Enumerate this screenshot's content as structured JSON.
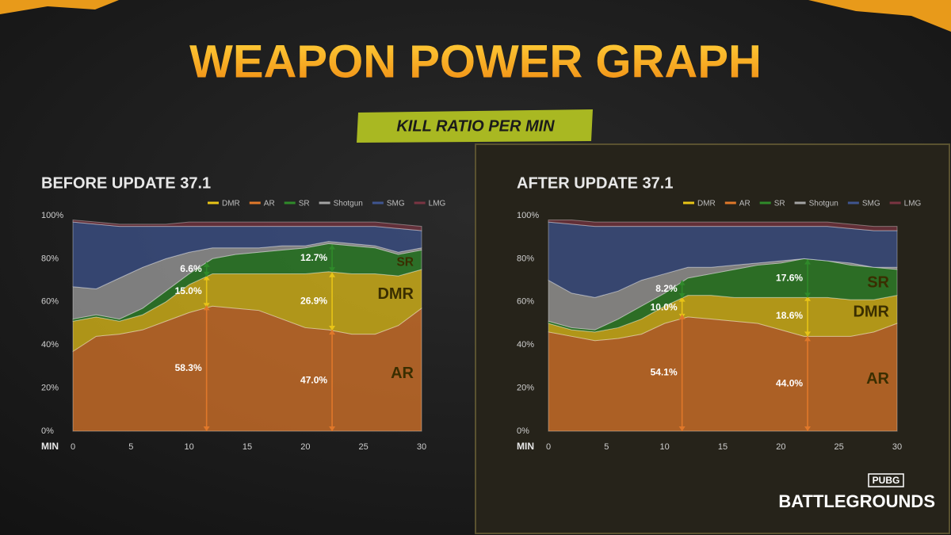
{
  "header": {
    "title": "WEAPON POWER GRAPH",
    "subtitle": "KILL RATIO PER MIN"
  },
  "logo": {
    "badge": "PUBG",
    "name": "BATTLEGROUNDS"
  },
  "chart_data": [
    {
      "type": "area",
      "stacked": true,
      "title": "BEFORE UPDATE 37.1",
      "xlabel": "MIN",
      "x": [
        0,
        2,
        4,
        6,
        8,
        10,
        12,
        14,
        16,
        18,
        20,
        22,
        24,
        26,
        28,
        30
      ],
      "xlim": [
        0,
        30
      ],
      "xticks": [
        0,
        5,
        10,
        15,
        20,
        25,
        30
      ],
      "ylim": [
        0,
        100
      ],
      "yticks": [
        {
          "value": 0,
          "label": "0%"
        },
        {
          "value": 20,
          "label": "20%"
        },
        {
          "value": 40,
          "label": "40%"
        },
        {
          "value": 60,
          "label": "60%"
        },
        {
          "value": 80,
          "label": "80%"
        },
        {
          "value": 100,
          "label": "100%"
        }
      ],
      "series": [
        {
          "name": "DMR",
          "color": "#e8c417",
          "label_inline": true,
          "values": [
            14,
            9,
            6,
            7,
            9,
            13,
            15,
            16,
            17,
            21,
            25,
            27,
            28,
            28,
            23,
            18
          ],
          "annotations": [
            {
              "x": 11.5,
              "value": 15.0,
              "label": "15.0%"
            },
            {
              "x": 22.3,
              "value": 26.9,
              "label": "26.9%"
            }
          ]
        },
        {
          "name": "AR",
          "color": "#e0782a",
          "label_inline": true,
          "values": [
            37,
            44,
            45,
            47,
            51,
            55,
            58,
            57,
            56,
            52,
            48,
            47,
            45,
            45,
            49,
            57
          ],
          "annotations": [
            {
              "x": 11.5,
              "value": 58.3,
              "label": "58.3%"
            },
            {
              "x": 22.3,
              "value": 47.0,
              "label": "47.0%"
            }
          ]
        },
        {
          "name": "SR",
          "color": "#2f8a2a",
          "label_inline": true,
          "values": [
            1,
            1,
            1,
            3,
            5,
            5,
            7,
            9,
            10,
            11,
            12,
            13,
            13,
            12,
            10,
            9
          ],
          "annotations": [
            {
              "x": 11.5,
              "value": 6.6,
              "label": "6.6%"
            },
            {
              "x": 22.3,
              "value": 12.7,
              "label": "12.7%"
            }
          ]
        },
        {
          "name": "Shotgun",
          "color": "#a4a4a4",
          "values": [
            15,
            12,
            19,
            19,
            15,
            10,
            5,
            3,
            2,
            2,
            1,
            1,
            1,
            1,
            1,
            1
          ]
        },
        {
          "name": "SMG",
          "color": "#3f5590",
          "values": [
            30,
            30,
            24,
            19,
            15,
            12,
            10,
            10,
            10,
            9,
            9,
            7,
            8,
            9,
            11,
            8
          ]
        },
        {
          "name": "LMG",
          "color": "#7a3442",
          "values": [
            1,
            1,
            1,
            1,
            1,
            2,
            2,
            2,
            2,
            2,
            2,
            2,
            2,
            2,
            2,
            2
          ]
        }
      ]
    },
    {
      "type": "area",
      "stacked": true,
      "title": "AFTER UPDATE 37.1",
      "xlabel": "MIN",
      "x": [
        0,
        2,
        4,
        6,
        8,
        10,
        12,
        14,
        16,
        18,
        20,
        22,
        24,
        26,
        28,
        30
      ],
      "xlim": [
        0,
        30
      ],
      "xticks": [
        0,
        5,
        10,
        15,
        20,
        25,
        30
      ],
      "ylim": [
        0,
        100
      ],
      "yticks": [
        {
          "value": 0,
          "label": "0%"
        },
        {
          "value": 20,
          "label": "20%"
        },
        {
          "value": 40,
          "label": "40%"
        },
        {
          "value": 60,
          "label": "60%"
        },
        {
          "value": 80,
          "label": "80%"
        },
        {
          "value": 100,
          "label": "100%"
        }
      ],
      "series": [
        {
          "name": "DMR",
          "color": "#e8c417",
          "label_inline": true,
          "values": [
            4,
            3,
            4,
            5,
            7,
            8,
            10,
            11,
            11,
            12,
            15,
            18,
            18,
            17,
            15,
            13
          ],
          "annotations": [
            {
              "x": 11.5,
              "value": 10.0,
              "label": "10.0%"
            },
            {
              "x": 22.3,
              "value": 18.6,
              "label": "18.6%"
            }
          ]
        },
        {
          "name": "AR",
          "color": "#e0782a",
          "label_inline": true,
          "values": [
            46,
            44,
            42,
            43,
            45,
            50,
            53,
            52,
            51,
            50,
            47,
            44,
            44,
            44,
            46,
            50
          ],
          "annotations": [
            {
              "x": 11.5,
              "value": 54.1,
              "label": "54.1%"
            },
            {
              "x": 22.3,
              "value": 44.0,
              "label": "44.0%"
            }
          ]
        },
        {
          "name": "SR",
          "color": "#2f8a2a",
          "label_inline": true,
          "values": [
            1,
            1,
            1,
            4,
            6,
            6,
            8,
            10,
            13,
            15,
            16,
            18,
            17,
            16,
            15,
            12
          ],
          "annotations": [
            {
              "x": 11.5,
              "value": 8.2,
              "label": "8.2%"
            },
            {
              "x": 22.3,
              "value": 17.6,
              "label": "17.6%"
            }
          ]
        },
        {
          "name": "Shotgun",
          "color": "#a4a4a4",
          "values": [
            19,
            16,
            15,
            13,
            12,
            9,
            5,
            3,
            2,
            1,
            1,
            0,
            0,
            1,
            0,
            1
          ]
        },
        {
          "name": "SMG",
          "color": "#3f5590",
          "values": [
            27,
            32,
            33,
            30,
            25,
            22,
            19,
            19,
            18,
            17,
            16,
            15,
            16,
            16,
            17,
            17
          ]
        },
        {
          "name": "LMG",
          "color": "#7a3442",
          "values": [
            1,
            2,
            2,
            2,
            2,
            2,
            2,
            2,
            2,
            2,
            2,
            2,
            2,
            2,
            2,
            2
          ]
        }
      ]
    }
  ]
}
